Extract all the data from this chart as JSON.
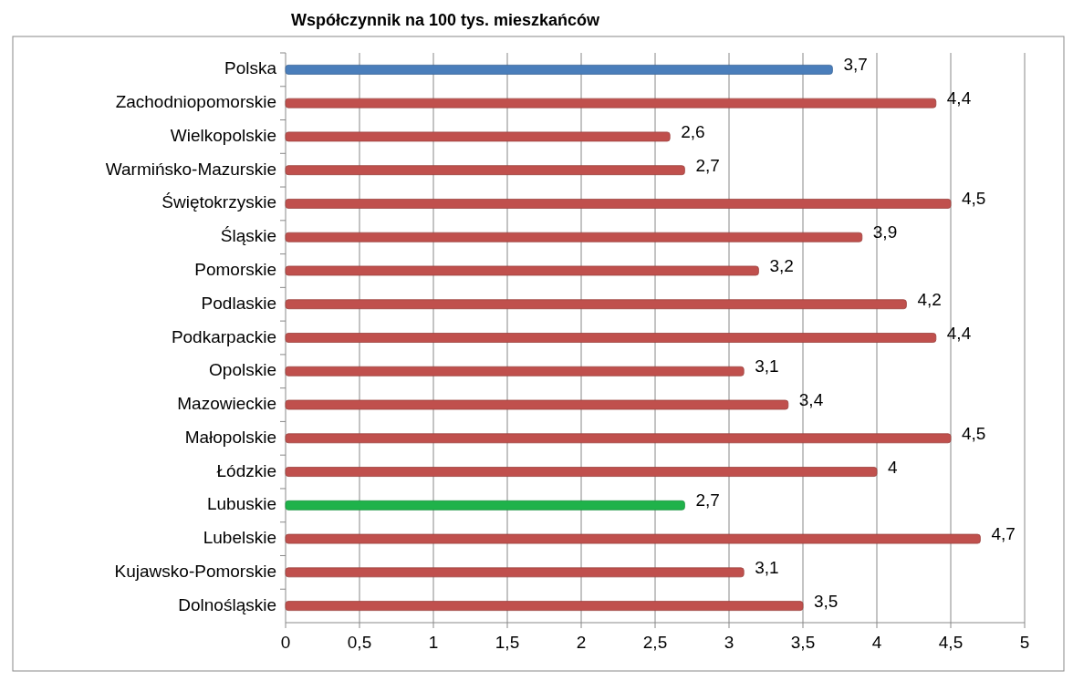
{
  "chart_data": {
    "type": "bar",
    "orientation": "horizontal",
    "title": "Współczynnik na 100 tys. mieszkańców",
    "categories": [
      "Polska",
      "Zachodniopomorskie",
      "Wielkopolskie",
      "Warmińsko-Mazurskie",
      "Świętokrzyskie",
      "Śląskie",
      "Pomorskie",
      "Podlaskie",
      "Podkarpackie",
      "Opolskie",
      "Mazowieckie",
      "Małopolskie",
      "Łódzkie",
      "Lubuskie",
      "Lubelskie",
      "Kujawsko-Pomorskie",
      "Dolnośląskie"
    ],
    "values": [
      3.7,
      4.4,
      2.6,
      2.7,
      4.5,
      3.9,
      3.2,
      4.2,
      4.4,
      3.1,
      3.4,
      4.5,
      4,
      2.7,
      4.7,
      3.1,
      3.5
    ],
    "value_labels": [
      "3,7",
      "4,4",
      "2,6",
      "2,7",
      "4,5",
      "3,9",
      "3,2",
      "4,2",
      "4,4",
      "3,1",
      "3,4",
      "4,5",
      "4",
      "2,7",
      "4,7",
      "3,1",
      "3,5"
    ],
    "colors": [
      "#4a7ebb",
      "#c0504d",
      "#c0504d",
      "#c0504d",
      "#c0504d",
      "#c0504d",
      "#c0504d",
      "#c0504d",
      "#c0504d",
      "#c0504d",
      "#c0504d",
      "#c0504d",
      "#c0504d",
      "#1fb24a",
      "#c0504d",
      "#c0504d",
      "#c0504d"
    ],
    "xlim": [
      0,
      5
    ],
    "xticks": [
      0,
      {
        "value": 0.5,
        "label": "0,5"
      },
      1,
      {
        "value": 1.5,
        "label": "1,5"
      },
      2,
      {
        "value": 2.5,
        "label": "2,5"
      },
      3,
      {
        "value": 3.5,
        "label": "3,5"
      },
      4,
      {
        "value": 4.5,
        "label": "4,5"
      },
      5
    ],
    "grid": "x"
  }
}
